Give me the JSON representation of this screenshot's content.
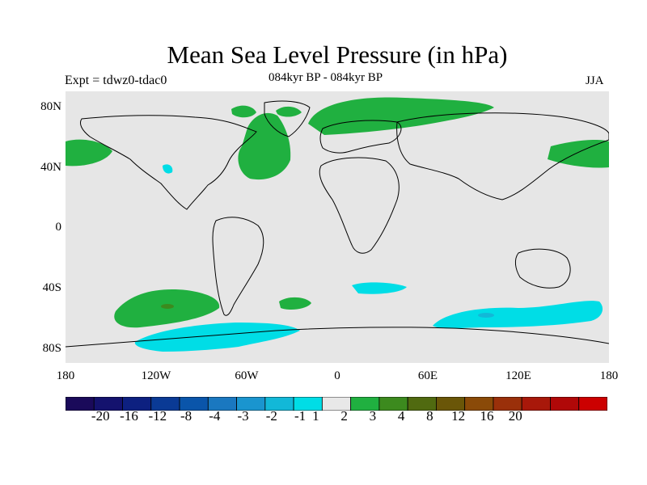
{
  "title": "Mean Sea Level Pressure (in hPa)",
  "subtitle_left": "Expt = tdwz0-tdac0",
  "subtitle_center": "084kyr BP - 084kyr BP",
  "subtitle_right": "JJA",
  "lat_labels": [
    "80N",
    "40N",
    "0",
    "40S",
    "80S"
  ],
  "lon_labels": [
    "180",
    "120W",
    "60W",
    "0",
    "60E",
    "120E",
    "180"
  ],
  "colorbar": {
    "colors": [
      "#1a0a5a",
      "#14126e",
      "#0d2080",
      "#0a3a95",
      "#0a55aa",
      "#1a78c0",
      "#1a95cf",
      "#12b8d8",
      "#00dde6",
      "#e8e8e8",
      "#20b040",
      "#3c8a1e",
      "#506a10",
      "#6a5608",
      "#8a4a08",
      "#9a300a",
      "#a8180a",
      "#b00808",
      "#cc0000"
    ],
    "labels": [
      "-20",
      "-16",
      "-12",
      "-8",
      "-4",
      "-3",
      "-2",
      "-1",
      "1",
      "2",
      "3",
      "4",
      "8",
      "12",
      "16",
      "20"
    ]
  },
  "chart_data": {
    "type": "map",
    "projection": "cylindrical equidistant",
    "lon_range": [
      -180,
      180
    ],
    "lat_range": [
      -90,
      90
    ],
    "variable": "Mean Sea Level Pressure difference (hPa)",
    "background_class": "-1 to 1",
    "anomalies": [
      {
        "region": "North Atlantic / Greenland",
        "class": "1 to 2"
      },
      {
        "region": "Arctic Ocean",
        "class": "1 to 2"
      },
      {
        "region": "North Pacific (west)",
        "class": "1 to 2"
      },
      {
        "region": "North Pacific (east)",
        "class": "1 to 2"
      },
      {
        "region": "Southeast Pacific",
        "class": "1 to 2"
      },
      {
        "region": "South Atlantic",
        "class": "1 to 2"
      },
      {
        "region": "Southern Ocean (Pacific sector)",
        "class": "-2 to -1"
      },
      {
        "region": "Southern Ocean (Indian sector)",
        "class": "-2 to -1"
      },
      {
        "region": "South Indian Ocean",
        "class": "-2 to -1"
      }
    ]
  }
}
